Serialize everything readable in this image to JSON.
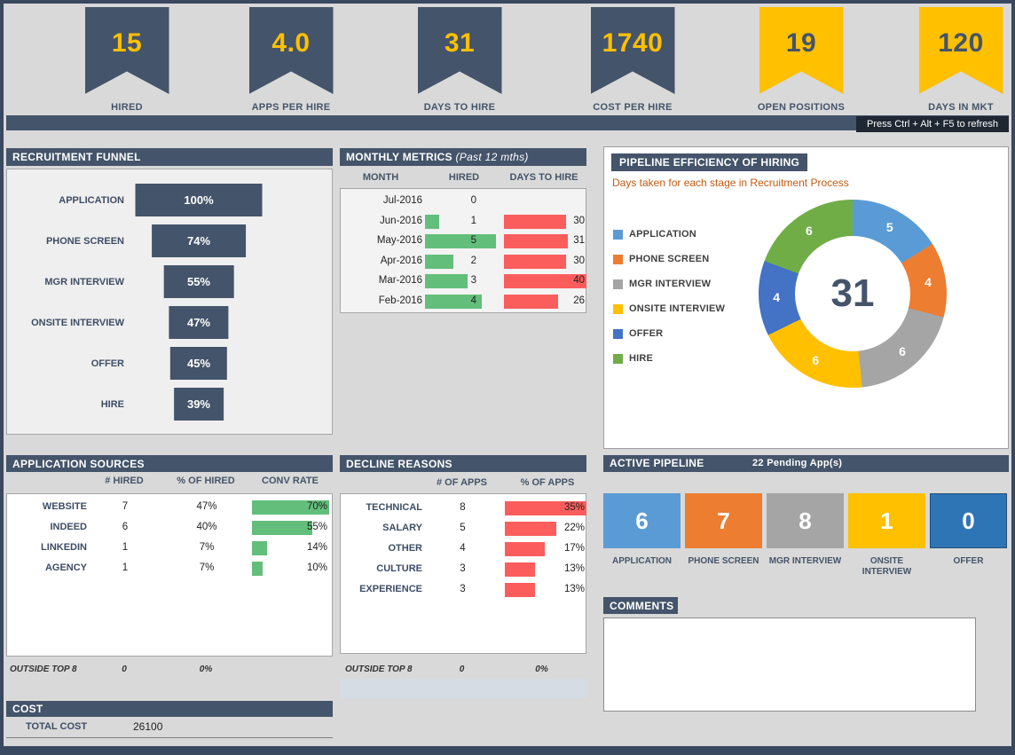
{
  "colors": {
    "dark_slate": "#44546A",
    "accent_yellow": "#FFC000",
    "green_bar": "#63BE7B",
    "red_bar": "#FB5D5D",
    "subtitle_orange": "#C55A11"
  },
  "kpis": [
    {
      "value": "15",
      "label": "HIRED",
      "style": "dark"
    },
    {
      "value": "4.0",
      "label": "APPS PER HIRE",
      "style": "dark"
    },
    {
      "value": "31",
      "label": "DAYS TO HIRE",
      "style": "dark"
    },
    {
      "value": "1740",
      "label": "COST PER HIRE",
      "style": "dark"
    },
    {
      "value": "19",
      "label": "OPEN POSITIONS",
      "style": "yellow"
    },
    {
      "value": "120",
      "label": "DAYS IN MKT",
      "style": "yellow"
    }
  ],
  "refresh_note": "Press Ctrl + Alt + F5 to refresh",
  "funnel": {
    "title": "RECRUITMENT FUNNEL",
    "stages": [
      {
        "label": "APPLICATION",
        "value": 100,
        "display": "100%"
      },
      {
        "label": "PHONE SCREEN",
        "value": 74,
        "display": "74%"
      },
      {
        "label": "MGR INTERVIEW",
        "value": 55,
        "display": "55%"
      },
      {
        "label": "ONSITE INTERVIEW",
        "value": 47,
        "display": "47%"
      },
      {
        "label": "OFFER",
        "value": 45,
        "display": "45%"
      },
      {
        "label": "HIRE",
        "value": 39,
        "display": "39%"
      }
    ]
  },
  "monthly_metrics": {
    "title": "MONTHLY METRICS",
    "subtitle": "(Past 12 mths)",
    "columns": {
      "month": "MONTH",
      "hired": "HIRED",
      "days": "DAYS TO HIRE"
    },
    "rows": [
      {
        "month": "Jul-2016",
        "hired": 0,
        "days": null
      },
      {
        "month": "Jun-2016",
        "hired": 1,
        "days": 30
      },
      {
        "month": "May-2016",
        "hired": 5,
        "days": 31
      },
      {
        "month": "Apr-2016",
        "hired": 2,
        "days": 30
      },
      {
        "month": "Mar-2016",
        "hired": 3,
        "days": 40
      },
      {
        "month": "Feb-2016",
        "hired": 4,
        "days": 26
      }
    ]
  },
  "pipeline_efficiency": {
    "title": "PIPELINE EFFICIENCY OF HIRING",
    "subtitle": "Days taken for each stage in Recruitment Process",
    "center_value": "31",
    "segments": [
      {
        "label": "APPLICATION",
        "value": 5,
        "color": "#5B9BD5"
      },
      {
        "label": "PHONE SCREEN",
        "value": 4,
        "color": "#ED7D31"
      },
      {
        "label": "MGR INTERVIEW",
        "value": 6,
        "color": "#A5A5A5"
      },
      {
        "label": "ONSITE INTERVIEW",
        "value": 6,
        "color": "#FFC000"
      },
      {
        "label": "OFFER",
        "value": 4,
        "color": "#4472C4"
      },
      {
        "label": "HIRE",
        "value": 6,
        "color": "#70AD47"
      }
    ]
  },
  "application_sources": {
    "title": "APPLICATION SOURCES",
    "columns": {
      "hired": "# HIRED",
      "pct": "% OF HIRED",
      "conv": "CONV RATE"
    },
    "rows": [
      {
        "source": "WEBSITE",
        "hired": "7",
        "pct": "47%",
        "conv": "70%",
        "conv_value": 70
      },
      {
        "source": "INDEED",
        "hired": "6",
        "pct": "40%",
        "conv": "55%",
        "conv_value": 55
      },
      {
        "source": "LINKEDIN",
        "hired": "1",
        "pct": "7%",
        "conv": "14%",
        "conv_value": 14
      },
      {
        "source": "AGENCY",
        "hired": "1",
        "pct": "7%",
        "conv": "10%",
        "conv_value": 10
      }
    ],
    "footer": {
      "label": "OUTSIDE TOP 8",
      "hired": "0",
      "pct": "0%"
    }
  },
  "decline_reasons": {
    "title": "DECLINE REASONS",
    "columns": {
      "count": "# OF APPS",
      "pct": "% OF APPS"
    },
    "rows": [
      {
        "reason": "TECHNICAL",
        "count": "8",
        "pct": "35%",
        "pct_value": 35
      },
      {
        "reason": "SALARY",
        "count": "5",
        "pct": "22%",
        "pct_value": 22
      },
      {
        "reason": "OTHER",
        "count": "4",
        "pct": "17%",
        "pct_value": 17
      },
      {
        "reason": "CULTURE",
        "count": "3",
        "pct": "13%",
        "pct_value": 13
      },
      {
        "reason": "EXPERIENCE",
        "count": "3",
        "pct": "13%",
        "pct_value": 13
      }
    ],
    "footer": {
      "label": "OUTSIDE TOP 8",
      "count": "0",
      "pct": "0%"
    }
  },
  "active_pipeline": {
    "title": "ACTIVE PIPELINE",
    "pending": "22 Pending App(s)",
    "stages": [
      {
        "label": "APPLICATION",
        "count": "6",
        "color": "#5B9BD5"
      },
      {
        "label": "PHONE SCREEN",
        "count": "7",
        "color": "#ED7D31"
      },
      {
        "label": "MGR INTERVIEW",
        "count": "8",
        "color": "#A5A5A5"
      },
      {
        "label": "ONSITE INTERVIEW",
        "count": "1",
        "color": "#FFC000"
      },
      {
        "label": "OFFER",
        "count": "0",
        "color": "#2E75B6"
      }
    ]
  },
  "comments": {
    "title": "COMMENTS",
    "text": ""
  },
  "cost": {
    "title": "COST",
    "label": "TOTAL COST",
    "value": "26100"
  },
  "chart_data": [
    {
      "type": "bar",
      "subtype": "funnel",
      "title": "RECRUITMENT FUNNEL",
      "categories": [
        "APPLICATION",
        "PHONE SCREEN",
        "MGR INTERVIEW",
        "ONSITE INTERVIEW",
        "OFFER",
        "HIRE"
      ],
      "values": [
        100,
        74,
        55,
        47,
        45,
        39
      ],
      "unit": "%",
      "bar_color": "#44546A",
      "orientation": "horizontal-centered"
    },
    {
      "type": "bar",
      "title": "MONTHLY METRICS (Past 12 mths)",
      "categories": [
        "Jul-2016",
        "Jun-2016",
        "May-2016",
        "Apr-2016",
        "Mar-2016",
        "Feb-2016"
      ],
      "series": [
        {
          "name": "HIRED",
          "values": [
            0,
            1,
            5,
            2,
            3,
            4
          ],
          "color": "#63BE7B"
        },
        {
          "name": "DAYS TO HIRE",
          "values": [
            null,
            30,
            31,
            30,
            40,
            26
          ],
          "color": "#FB5D5D"
        }
      ],
      "orientation": "horizontal"
    },
    {
      "type": "pie",
      "subtype": "donut",
      "title": "PIPELINE EFFICIENCY OF HIRING",
      "subtitle": "Days taken for each stage in Recruitment Process",
      "labels": [
        "APPLICATION",
        "PHONE SCREEN",
        "MGR INTERVIEW",
        "ONSITE INTERVIEW",
        "OFFER",
        "HIRE"
      ],
      "values": [
        5,
        4,
        6,
        6,
        4,
        6
      ],
      "colors": [
        "#5B9BD5",
        "#ED7D31",
        "#A5A5A5",
        "#FFC000",
        "#4472C4",
        "#70AD47"
      ],
      "center_label": "31",
      "legend_position": "left"
    },
    {
      "type": "table",
      "title": "APPLICATION SOURCES",
      "columns": [
        "",
        "# HIRED",
        "% OF HIRED",
        "CONV RATE"
      ],
      "rows": [
        [
          "WEBSITE",
          "7",
          "47%",
          "70%"
        ],
        [
          "INDEED",
          "6",
          "40%",
          "55%"
        ],
        [
          "LINKEDIN",
          "1",
          "7%",
          "14%"
        ],
        [
          "AGENCY",
          "1",
          "7%",
          "10%"
        ],
        [
          "OUTSIDE TOP 8",
          "0",
          "0%",
          ""
        ]
      ],
      "bar_column": "CONV RATE",
      "bar_color": "#63BE7B"
    },
    {
      "type": "bar",
      "title": "DECLINE REASONS",
      "categories": [
        "TECHNICAL",
        "SALARY",
        "OTHER",
        "CULTURE",
        "EXPERIENCE"
      ],
      "series": [
        {
          "name": "# OF APPS",
          "values": [
            8,
            5,
            4,
            3,
            3
          ]
        },
        {
          "name": "% OF APPS",
          "values": [
            35,
            22,
            17,
            13,
            13
          ],
          "unit": "%",
          "color": "#FB5D5D"
        }
      ],
      "footer": [
        "OUTSIDE TOP 8",
        "0",
        "0%"
      ],
      "orientation": "horizontal"
    },
    {
      "type": "bar",
      "subtype": "kpi-boxes",
      "title": "ACTIVE PIPELINE",
      "subtitle": "22 Pending App(s)",
      "categories": [
        "APPLICATION",
        "PHONE SCREEN",
        "MGR INTERVIEW",
        "ONSITE INTERVIEW",
        "OFFER"
      ],
      "values": [
        6,
        7,
        8,
        1,
        0
      ],
      "colors": [
        "#5B9BD5",
        "#ED7D31",
        "#A5A5A5",
        "#FFC000",
        "#2E75B6"
      ]
    }
  ]
}
